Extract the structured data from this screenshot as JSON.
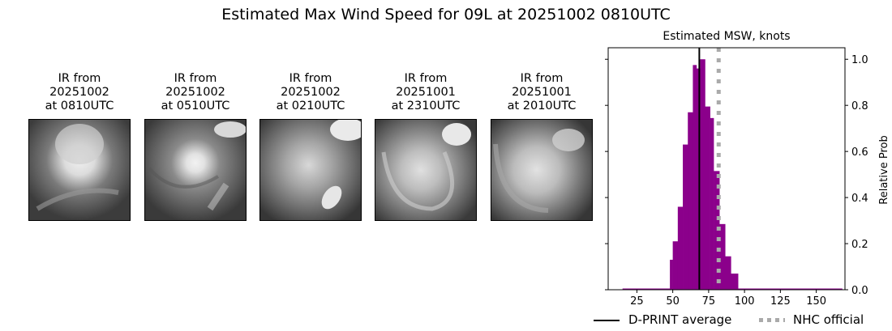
{
  "figure": {
    "title": "Estimated Max Wind Speed for 09L at 20251002 0810UTC"
  },
  "ir_panels": [
    {
      "line1": "IR from",
      "line2": "20251002",
      "line3": "at 0810UTC"
    },
    {
      "line1": "IR from",
      "line2": "20251002",
      "line3": "at 0510UTC"
    },
    {
      "line1": "IR from",
      "line2": "20251002",
      "line3": "at 0210UTC"
    },
    {
      "line1": "IR from",
      "line2": "20251001",
      "line3": "at 2310UTC"
    },
    {
      "line1": "IR from",
      "line2": "20251001",
      "line3": "at 2010UTC"
    }
  ],
  "histogram": {
    "title": "Estimated MSW, knots",
    "ylabel": "Relative Prob",
    "legend": {
      "dprint_label": "D-PRINT average",
      "nhc_label": "NHC official"
    },
    "colors": {
      "bars": "#8b008b",
      "dprint": "#000000",
      "nhc": "#aaaaaa"
    }
  },
  "chart_data": {
    "type": "bar",
    "title": "Estimated MSW, knots",
    "xlabel": "",
    "ylabel": "Relative Prob",
    "xlim": [
      5,
      170
    ],
    "ylim": [
      0,
      1.05
    ],
    "xticks": [
      25,
      50,
      75,
      100,
      125,
      150
    ],
    "yticks": [
      0.0,
      0.2,
      0.4,
      0.6,
      0.8,
      1.0
    ],
    "y_axis_position": "right",
    "grid": false,
    "legend_position": "bottom",
    "bins": [
      {
        "x0": 15,
        "x1": 48,
        "value": 0.005
      },
      {
        "x0": 48,
        "x1": 50,
        "value": 0.13
      },
      {
        "x0": 50,
        "x1": 53.5,
        "value": 0.21
      },
      {
        "x0": 53.5,
        "x1": 57,
        "value": 0.36
      },
      {
        "x0": 57,
        "x1": 60.5,
        "value": 0.63
      },
      {
        "x0": 60.5,
        "x1": 64,
        "value": 0.77
      },
      {
        "x0": 64,
        "x1": 66.5,
        "value": 0.975
      },
      {
        "x0": 66.5,
        "x1": 69,
        "value": 0.96
      },
      {
        "x0": 69,
        "x1": 72.5,
        "value": 1.0
      },
      {
        "x0": 72.5,
        "x1": 76,
        "value": 0.795
      },
      {
        "x0": 76,
        "x1": 78.5,
        "value": 0.745
      },
      {
        "x0": 78.5,
        "x1": 82.5,
        "value": 0.515
      },
      {
        "x0": 82.5,
        "x1": 86.5,
        "value": 0.285
      },
      {
        "x0": 86.5,
        "x1": 90.5,
        "value": 0.145
      },
      {
        "x0": 90.5,
        "x1": 95.5,
        "value": 0.07
      },
      {
        "x0": 95.5,
        "x1": 168,
        "value": 0.005
      }
    ],
    "series": [
      {
        "name": "D-PRINT average",
        "type": "vline",
        "x": 68.5,
        "style": "solid",
        "color": "#000000"
      },
      {
        "name": "NHC official",
        "type": "vline",
        "x": 82,
        "style": "dotted",
        "color": "#aaaaaa"
      }
    ]
  }
}
